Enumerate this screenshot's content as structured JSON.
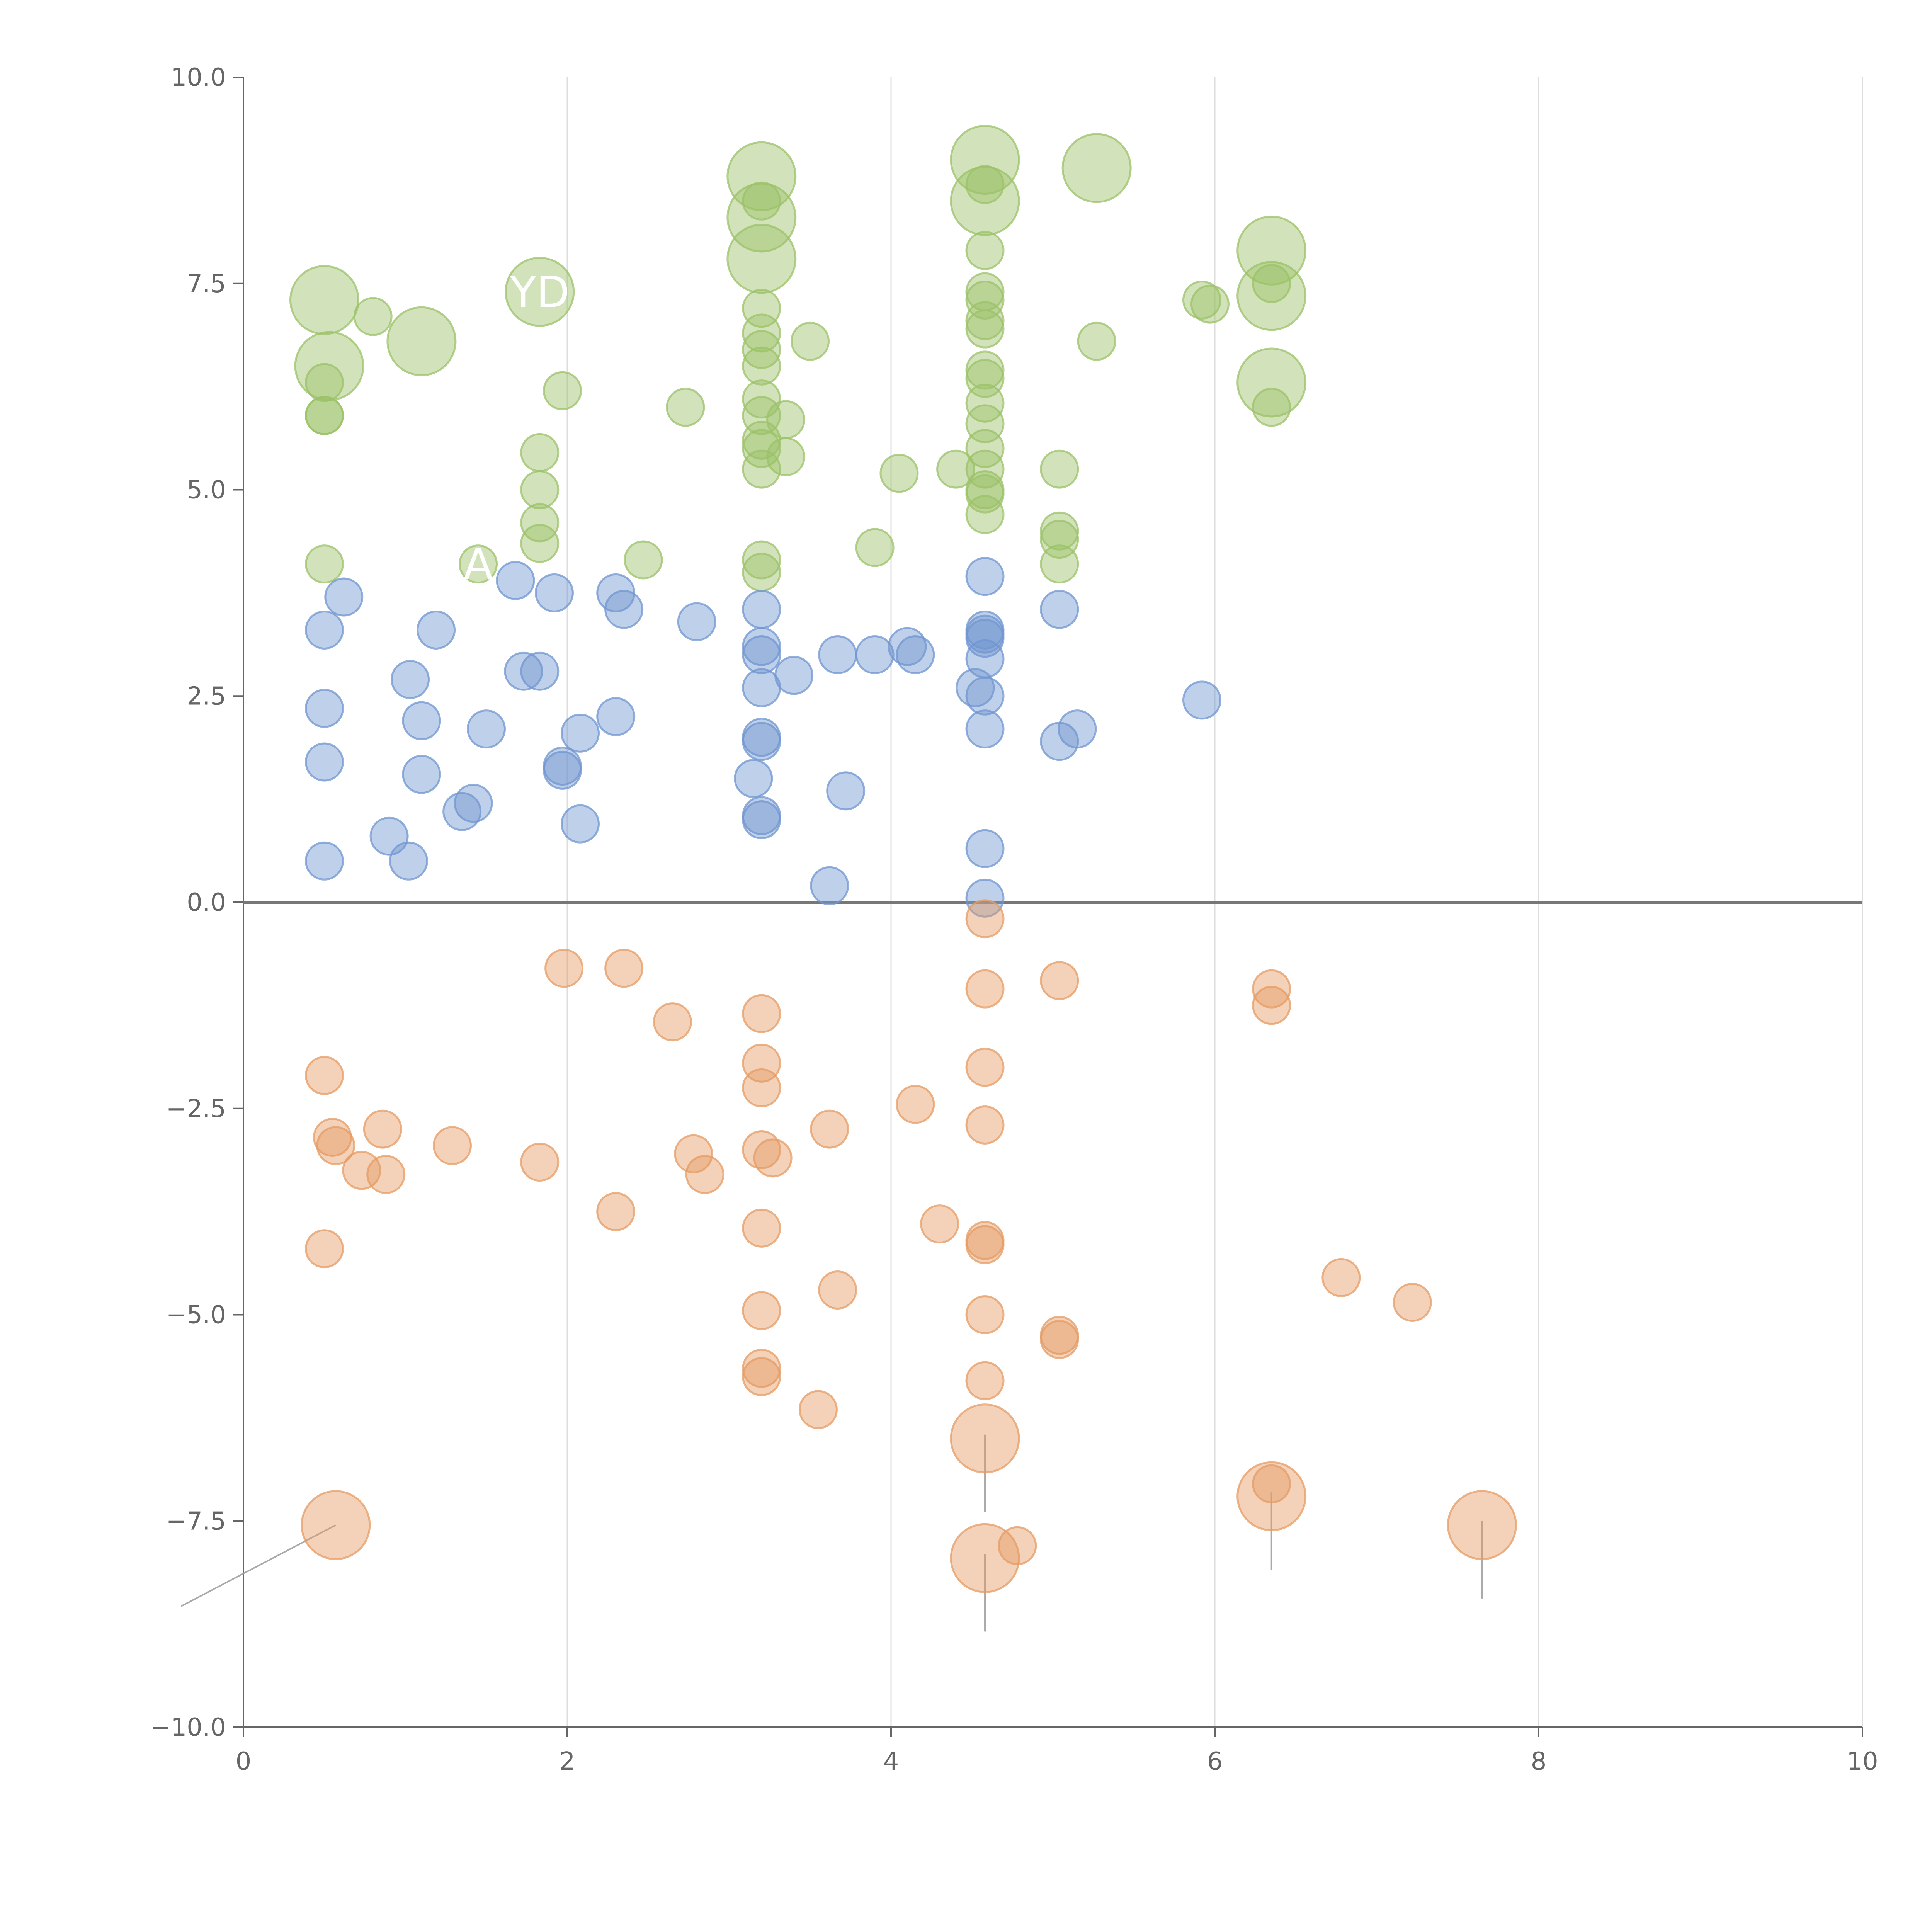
{
  "chart_data": {
    "type": "scatter",
    "title": "",
    "xlabel": "",
    "ylabel": "",
    "xlim": [
      0,
      10
    ],
    "ylim": [
      -10,
      10
    ],
    "x_ticks": [
      "0",
      "2",
      "4",
      "6",
      "8",
      "10"
    ],
    "y_ticks": [
      "10.0",
      "7.5",
      "5.0",
      "2.5",
      "0.0",
      "−2.5",
      "−5.0",
      "−7.5",
      "−10.0"
    ],
    "x_tick_values": [
      0,
      2,
      4,
      6,
      8,
      10
    ],
    "y_tick_values": [
      10,
      7.5,
      5,
      2.5,
      0,
      -2.5,
      -5,
      -7.5,
      -10
    ],
    "grid": "vertical",
    "zero_line": 0,
    "colors": {
      "green": "#9bc268",
      "blue": "#7096d0",
      "orange": "#e59b63"
    },
    "series": [
      {
        "name": "green",
        "color": "#9bc268",
        "points": [
          [
            0.5,
            7.3,
            2
          ],
          [
            0.8,
            7.1,
            1
          ],
          [
            1.1,
            6.8,
            2
          ],
          [
            0.53,
            6.5,
            2
          ],
          [
            0.5,
            6.3,
            1
          ],
          [
            0.5,
            5.9,
            1
          ],
          [
            0.5,
            5.9,
            1
          ],
          [
            0.5,
            4.1,
            1
          ],
          [
            1.83,
            7.4,
            2
          ],
          [
            1.97,
            6.2,
            1
          ],
          [
            1.83,
            5.45,
            1
          ],
          [
            1.83,
            5.0,
            1
          ],
          [
            1.83,
            4.6,
            1
          ],
          [
            1.83,
            4.35,
            1
          ],
          [
            1.45,
            4.1,
            1
          ],
          [
            2.47,
            4.15,
            1
          ],
          [
            2.73,
            6.0,
            1
          ],
          [
            3.2,
            8.8,
            2
          ],
          [
            3.2,
            8.3,
            2
          ],
          [
            3.2,
            7.8,
            2
          ],
          [
            3.2,
            8.5,
            1
          ],
          [
            3.2,
            7.2,
            1
          ],
          [
            3.2,
            6.9,
            1
          ],
          [
            3.2,
            6.7,
            1
          ],
          [
            3.2,
            6.5,
            1
          ],
          [
            3.2,
            6.1,
            1
          ],
          [
            3.2,
            5.9,
            1
          ],
          [
            3.2,
            5.6,
            1
          ],
          [
            3.2,
            5.5,
            1
          ],
          [
            3.2,
            5.25,
            1
          ],
          [
            3.2,
            4.15,
            1
          ],
          [
            3.2,
            4.0,
            1
          ],
          [
            3.35,
            5.85,
            1
          ],
          [
            3.35,
            5.4,
            1
          ],
          [
            3.5,
            6.8,
            1
          ],
          [
            3.9,
            4.3,
            1
          ],
          [
            4.05,
            5.2,
            1
          ],
          [
            4.4,
            5.25,
            1
          ],
          [
            4.58,
            9.0,
            2
          ],
          [
            4.58,
            8.5,
            2
          ],
          [
            4.58,
            8.7,
            1
          ],
          [
            4.58,
            7.9,
            1
          ],
          [
            4.58,
            7.4,
            1
          ],
          [
            4.58,
            7.3,
            1
          ],
          [
            4.58,
            7.05,
            1
          ],
          [
            4.58,
            6.95,
            1
          ],
          [
            4.58,
            6.45,
            1
          ],
          [
            4.58,
            6.35,
            1
          ],
          [
            4.58,
            6.05,
            1
          ],
          [
            4.58,
            5.8,
            1
          ],
          [
            4.58,
            5.5,
            1
          ],
          [
            4.58,
            5.25,
            1
          ],
          [
            4.58,
            5.0,
            1
          ],
          [
            4.58,
            4.95,
            1
          ],
          [
            4.58,
            4.7,
            1
          ],
          [
            5.04,
            5.25,
            1
          ],
          [
            5.04,
            4.5,
            1
          ],
          [
            5.04,
            4.4,
            1
          ],
          [
            5.04,
            4.1,
            1
          ],
          [
            5.27,
            8.9,
            2
          ],
          [
            5.27,
            6.8,
            1
          ],
          [
            5.92,
            7.3,
            1
          ],
          [
            5.97,
            7.25,
            1
          ],
          [
            6.35,
            7.9,
            2
          ],
          [
            6.35,
            7.35,
            2
          ],
          [
            6.35,
            6.3,
            2
          ],
          [
            6.35,
            7.5,
            1
          ],
          [
            6.35,
            6.0,
            1
          ]
        ]
      },
      {
        "name": "blue",
        "color": "#7096d0",
        "points": [
          [
            0.5,
            3.3,
            1
          ],
          [
            0.62,
            3.7,
            1
          ],
          [
            0.5,
            2.35,
            1
          ],
          [
            0.5,
            1.7,
            1
          ],
          [
            0.5,
            0.5,
            1
          ],
          [
            0.9,
            0.8,
            1
          ],
          [
            1.02,
            0.5,
            1
          ],
          [
            1.03,
            2.7,
            1
          ],
          [
            1.1,
            2.2,
            1
          ],
          [
            1.1,
            1.55,
            1
          ],
          [
            1.19,
            3.3,
            1
          ],
          [
            1.35,
            1.1,
            1
          ],
          [
            1.42,
            1.2,
            1
          ],
          [
            1.5,
            2.1,
            1
          ],
          [
            1.68,
            3.9,
            1
          ],
          [
            1.73,
            2.8,
            1
          ],
          [
            1.83,
            2.8,
            1
          ],
          [
            1.92,
            3.75,
            1
          ],
          [
            1.97,
            1.65,
            1
          ],
          [
            1.97,
            1.6,
            1
          ],
          [
            2.08,
            0.95,
            1
          ],
          [
            2.08,
            2.05,
            1
          ],
          [
            2.3,
            3.75,
            1
          ],
          [
            2.3,
            2.25,
            1
          ],
          [
            2.35,
            3.55,
            1
          ],
          [
            2.8,
            3.4,
            1
          ],
          [
            3.2,
            3.55,
            1
          ],
          [
            3.2,
            3.1,
            1
          ],
          [
            3.2,
            3.0,
            1
          ],
          [
            3.2,
            2.6,
            1
          ],
          [
            3.2,
            2.0,
            1
          ],
          [
            3.2,
            1.95,
            1
          ],
          [
            3.15,
            1.5,
            1
          ],
          [
            3.2,
            1.05,
            1
          ],
          [
            3.2,
            1.0,
            1
          ],
          [
            3.4,
            2.75,
            1
          ],
          [
            3.62,
            0.2,
            1
          ],
          [
            3.67,
            3.0,
            1
          ],
          [
            3.72,
            1.35,
            1
          ],
          [
            3.9,
            3.0,
            1
          ],
          [
            4.1,
            3.1,
            1
          ],
          [
            4.15,
            3.0,
            1
          ],
          [
            4.52,
            2.6,
            1
          ],
          [
            4.58,
            3.95,
            1
          ],
          [
            4.58,
            3.3,
            1
          ],
          [
            4.58,
            3.2,
            1
          ],
          [
            4.58,
            3.25,
            1
          ],
          [
            4.58,
            2.95,
            1
          ],
          [
            4.58,
            2.5,
            1
          ],
          [
            4.58,
            2.1,
            1
          ],
          [
            4.58,
            0.65,
            1
          ],
          [
            4.58,
            0.05,
            1
          ],
          [
            5.04,
            3.55,
            1
          ],
          [
            5.04,
            1.95,
            1
          ],
          [
            5.15,
            2.1,
            1
          ],
          [
            5.92,
            2.45,
            1
          ]
        ]
      },
      {
        "name": "orange",
        "color": "#e59b63",
        "points": [
          [
            0.5,
            -2.1,
            1
          ],
          [
            0.55,
            -2.85,
            1
          ],
          [
            0.57,
            -2.95,
            1
          ],
          [
            0.5,
            -4.2,
            1
          ],
          [
            0.73,
            -3.25,
            1
          ],
          [
            0.86,
            -2.75,
            1
          ],
          [
            0.88,
            -3.3,
            1
          ],
          [
            1.29,
            -2.95,
            1
          ],
          [
            0.57,
            -7.55,
            2
          ],
          [
            1.83,
            -3.15,
            1
          ],
          [
            1.98,
            -0.8,
            1
          ],
          [
            2.3,
            -3.75,
            1
          ],
          [
            2.35,
            -0.8,
            1
          ],
          [
            2.65,
            -1.45,
            1
          ],
          [
            2.78,
            -3.05,
            1
          ],
          [
            2.85,
            -3.3,
            1
          ],
          [
            3.2,
            -1.35,
            1
          ],
          [
            3.2,
            -1.95,
            1
          ],
          [
            3.2,
            -2.25,
            1
          ],
          [
            3.2,
            -3.0,
            1
          ],
          [
            3.27,
            -3.1,
            1
          ],
          [
            3.2,
            -3.95,
            1
          ],
          [
            3.2,
            -4.95,
            1
          ],
          [
            3.2,
            -5.65,
            1
          ],
          [
            3.2,
            -5.75,
            1
          ],
          [
            3.55,
            -6.15,
            1
          ],
          [
            3.62,
            -2.75,
            1
          ],
          [
            3.67,
            -4.7,
            1
          ],
          [
            4.15,
            -2.45,
            1
          ],
          [
            4.3,
            -3.9,
            1
          ],
          [
            4.58,
            -0.2,
            1
          ],
          [
            4.58,
            -1.05,
            1
          ],
          [
            4.58,
            -2.0,
            1
          ],
          [
            4.58,
            -2.7,
            1
          ],
          [
            4.58,
            -4.1,
            1
          ],
          [
            4.58,
            -4.15,
            1
          ],
          [
            4.58,
            -5.0,
            1
          ],
          [
            4.58,
            -5.8,
            1
          ],
          [
            4.58,
            -6.5,
            2
          ],
          [
            4.58,
            -7.95,
            2
          ],
          [
            4.78,
            -7.8,
            1
          ],
          [
            5.04,
            -0.95,
            1
          ],
          [
            5.04,
            -5.25,
            1
          ],
          [
            5.04,
            -5.3,
            1
          ],
          [
            6.35,
            -1.05,
            1
          ],
          [
            6.35,
            -1.25,
            1
          ],
          [
            6.35,
            -7.2,
            2
          ],
          [
            6.35,
            -7.05,
            1
          ],
          [
            6.78,
            -4.55,
            1
          ],
          [
            7.22,
            -4.85,
            1
          ],
          [
            7.65,
            -7.55,
            2
          ]
        ]
      }
    ],
    "labels": [
      {
        "text": "YD",
        "x": 1.83,
        "y": 7.4
      },
      {
        "text": "A",
        "x": 1.45,
        "y": 4.1
      }
    ]
  }
}
